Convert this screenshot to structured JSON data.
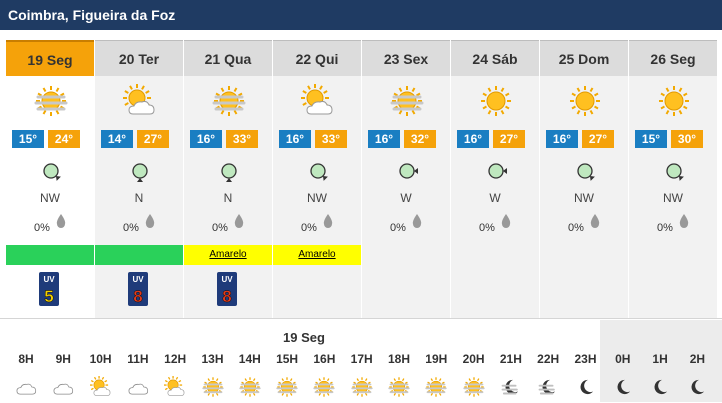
{
  "location": "Coimbra, Figueira da Foz",
  "days": [
    {
      "label": "19 Seg",
      "icon": "haze-sun",
      "tmin": "15°",
      "tmax": "24°",
      "wind": "NW",
      "rain": "0%",
      "alert": "green",
      "alert_text": "",
      "uv": "5",
      "uv_color": "#f5d000",
      "selected": true
    },
    {
      "label": "20 Ter",
      "icon": "partly-cloudy",
      "tmin": "14°",
      "tmax": "27°",
      "wind": "N",
      "rain": "0%",
      "alert": "green",
      "alert_text": "",
      "uv": "8",
      "uv_color": "#e23b1a",
      "selected": false
    },
    {
      "label": "21 Qua",
      "icon": "haze-sun",
      "tmin": "16°",
      "tmax": "33°",
      "wind": "N",
      "rain": "0%",
      "alert": "yellow",
      "alert_text": "Amarelo",
      "uv": "8",
      "uv_color": "#e23b1a",
      "selected": false
    },
    {
      "label": "22 Qui",
      "icon": "partly-cloudy",
      "tmin": "16°",
      "tmax": "33°",
      "wind": "NW",
      "rain": "0%",
      "alert": "yellow",
      "alert_text": "Amarelo",
      "uv": "",
      "uv_color": "",
      "selected": false
    },
    {
      "label": "23 Sex",
      "icon": "haze-sun",
      "tmin": "16°",
      "tmax": "32°",
      "wind": "W",
      "rain": "0%",
      "alert": "",
      "alert_text": "",
      "uv": "",
      "uv_color": "",
      "selected": false
    },
    {
      "label": "24 Sáb",
      "icon": "sun",
      "tmin": "16°",
      "tmax": "27°",
      "wind": "W",
      "rain": "0%",
      "alert": "",
      "alert_text": "",
      "uv": "",
      "uv_color": "",
      "selected": false
    },
    {
      "label": "25 Dom",
      "icon": "sun",
      "tmin": "16°",
      "tmax": "27°",
      "wind": "NW",
      "rain": "0%",
      "alert": "",
      "alert_text": "",
      "uv": "",
      "uv_color": "",
      "selected": false
    },
    {
      "label": "26 Seg",
      "icon": "sun",
      "tmin": "15°",
      "tmax": "30°",
      "wind": "NW",
      "rain": "0%",
      "alert": "",
      "alert_text": "",
      "uv": "",
      "uv_color": "",
      "selected": false
    }
  ],
  "hourly": {
    "date_label": "19 Seg",
    "hours": [
      {
        "h": "8H",
        "icon": "cloud"
      },
      {
        "h": "9H",
        "icon": "cloud"
      },
      {
        "h": "10H",
        "icon": "partly-cloudy"
      },
      {
        "h": "11H",
        "icon": "cloud"
      },
      {
        "h": "12H",
        "icon": "partly-cloudy"
      },
      {
        "h": "13H",
        "icon": "haze-sun"
      },
      {
        "h": "14H",
        "icon": "haze-sun"
      },
      {
        "h": "15H",
        "icon": "haze-sun"
      },
      {
        "h": "16H",
        "icon": "haze-sun"
      },
      {
        "h": "17H",
        "icon": "haze-sun"
      },
      {
        "h": "18H",
        "icon": "haze-sun"
      },
      {
        "h": "19H",
        "icon": "haze-sun"
      },
      {
        "h": "20H",
        "icon": "haze-sun"
      },
      {
        "h": "21H",
        "icon": "haze-moon"
      },
      {
        "h": "22H",
        "icon": "haze-moon"
      },
      {
        "h": "23H",
        "icon": "moon"
      },
      {
        "h": "0H",
        "icon": "moon"
      },
      {
        "h": "1H",
        "icon": "moon"
      },
      {
        "h": "2H",
        "icon": "moon"
      }
    ]
  },
  "uv_label": "UV"
}
